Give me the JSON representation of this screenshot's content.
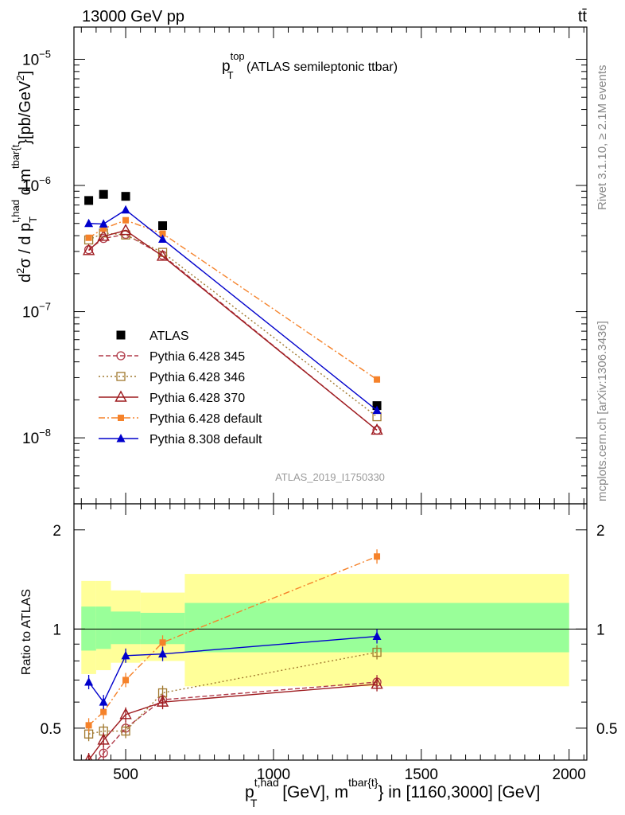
{
  "header": {
    "energy_label": "13000 GeV pp",
    "process_label": "tt̄"
  },
  "side_labels": {
    "rivet": "Rivet 3.1.10, ≥ 2.1M events",
    "mcplots": "mcplots.cern.ch [arXiv:1306.3436]"
  },
  "colors": {
    "atlas": "#000000",
    "p345": "#b03a48",
    "p346": "#a0782e",
    "p370": "#9e1b1f",
    "p6default": "#f5822a",
    "p8default": "#0000cc",
    "band_inner": "#99ff99",
    "band_outer": "#ffff99"
  },
  "chart_data": [
    {
      "type": "scatter",
      "panel": "main",
      "title_main": "p",
      "title_sup": "top",
      "title_sub": "T",
      "title_rest": " (ATLAS semileptonic ttbar)",
      "ylabel": "d²σ / d p_T^{t,had} d m^{tbar{t}}[pb/GeV²]",
      "yscale": "log",
      "ylim": [
        3e-09,
        1.8e-05
      ],
      "xlim": [
        325,
        2060
      ],
      "y_ticks": [
        {
          "value": 1e-08,
          "label": "10",
          "exp": "−8"
        },
        {
          "value": 1e-07,
          "label": "10",
          "exp": "−7"
        },
        {
          "value": 1e-06,
          "label": "10",
          "exp": "−6"
        },
        {
          "value": 1e-05,
          "label": "10",
          "exp": "−5"
        }
      ],
      "watermark": "ATLAS_2019_I1750330",
      "x": [
        375,
        425,
        500,
        625,
        1350
      ],
      "bins": [
        [
          350,
          400
        ],
        [
          400,
          450
        ],
        [
          450,
          550
        ],
        [
          550,
          700
        ],
        [
          700,
          2000
        ]
      ],
      "series": [
        {
          "key": "atlas",
          "name": "ATLAS",
          "values": [
            7.6e-07,
            8.5e-07,
            8.2e-07,
            4.8e-07,
            1.8e-08
          ]
        },
        {
          "key": "p345",
          "name": "Pythia 6.428 345",
          "values": [
            3.1e-07,
            3.8e-07,
            4.1e-07,
            2.8e-07,
            1.15e-08
          ]
        },
        {
          "key": "p346",
          "name": "Pythia 6.428 346",
          "values": [
            3.7e-07,
            4.2e-07,
            4.05e-07,
            2.95e-07,
            1.47e-08
          ]
        },
        {
          "key": "p370",
          "name": "Pythia 6.428 370",
          "values": [
            3.05e-07,
            3.95e-07,
            4.4e-07,
            2.75e-07,
            1.15e-08
          ]
        },
        {
          "key": "p6default",
          "name": "Pythia 6.428 default",
          "values": [
            3.85e-07,
            4.55e-07,
            5.3e-07,
            4.15e-07,
            2.9e-08
          ]
        },
        {
          "key": "p8default",
          "name": "Pythia 8.308 default",
          "values": [
            5e-07,
            4.95e-07,
            6.4e-07,
            3.75e-07,
            1.65e-08
          ]
        }
      ]
    },
    {
      "type": "scatter",
      "panel": "ratio",
      "ylabel": "Ratio to ATLAS",
      "xlabel_main": "p",
      "xlabel_sup": "t,had",
      "xlabel_sub": "T",
      "xlabel_rest": " [GeV], m",
      "xlabel_sup2": "tbar{t}",
      "xlabel_tail": "} in [1160,3000] [GeV]",
      "yscale": "log",
      "ylim": [
        0.4,
        2.4
      ],
      "xlim": [
        325,
        2060
      ],
      "y_ticks": [
        {
          "value": 0.5,
          "label": "0.5"
        },
        {
          "value": 1,
          "label": "1"
        },
        {
          "value": 2,
          "label": "2"
        }
      ],
      "x_ticks": [
        {
          "value": 500,
          "label": "500"
        },
        {
          "value": 1000,
          "label": "1000"
        },
        {
          "value": 1500,
          "label": "1500"
        },
        {
          "value": 2000,
          "label": "2000"
        }
      ],
      "bands": [
        {
          "x0": 350,
          "x1": 400,
          "inner": [
            0.86,
            1.17
          ],
          "outer": [
            0.73,
            1.4
          ]
        },
        {
          "x0": 400,
          "x1": 450,
          "inner": [
            0.87,
            1.17
          ],
          "outer": [
            0.75,
            1.4
          ]
        },
        {
          "x0": 450,
          "x1": 550,
          "inner": [
            0.9,
            1.13
          ],
          "outer": [
            0.79,
            1.31
          ]
        },
        {
          "x0": 550,
          "x1": 700,
          "inner": [
            0.9,
            1.12
          ],
          "outer": [
            0.8,
            1.29
          ]
        },
        {
          "x0": 700,
          "x1": 2000,
          "inner": [
            0.85,
            1.2
          ],
          "outer": [
            0.67,
            1.47
          ]
        }
      ],
      "x": [
        375,
        425,
        500,
        625,
        1350
      ],
      "series": [
        {
          "key": "p345",
          "values": [
            0.37,
            0.42,
            0.5,
            0.61,
            0.69
          ]
        },
        {
          "key": "p346",
          "values": [
            0.48,
            0.49,
            0.49,
            0.64,
            0.85
          ]
        },
        {
          "key": "p370",
          "values": [
            0.4,
            0.46,
            0.55,
            0.6,
            0.68
          ]
        },
        {
          "key": "p6default",
          "values": [
            0.51,
            0.56,
            0.7,
            0.91,
            1.66
          ]
        },
        {
          "key": "p8default",
          "values": [
            0.69,
            0.6,
            0.83,
            0.84,
            0.95
          ]
        }
      ]
    }
  ]
}
